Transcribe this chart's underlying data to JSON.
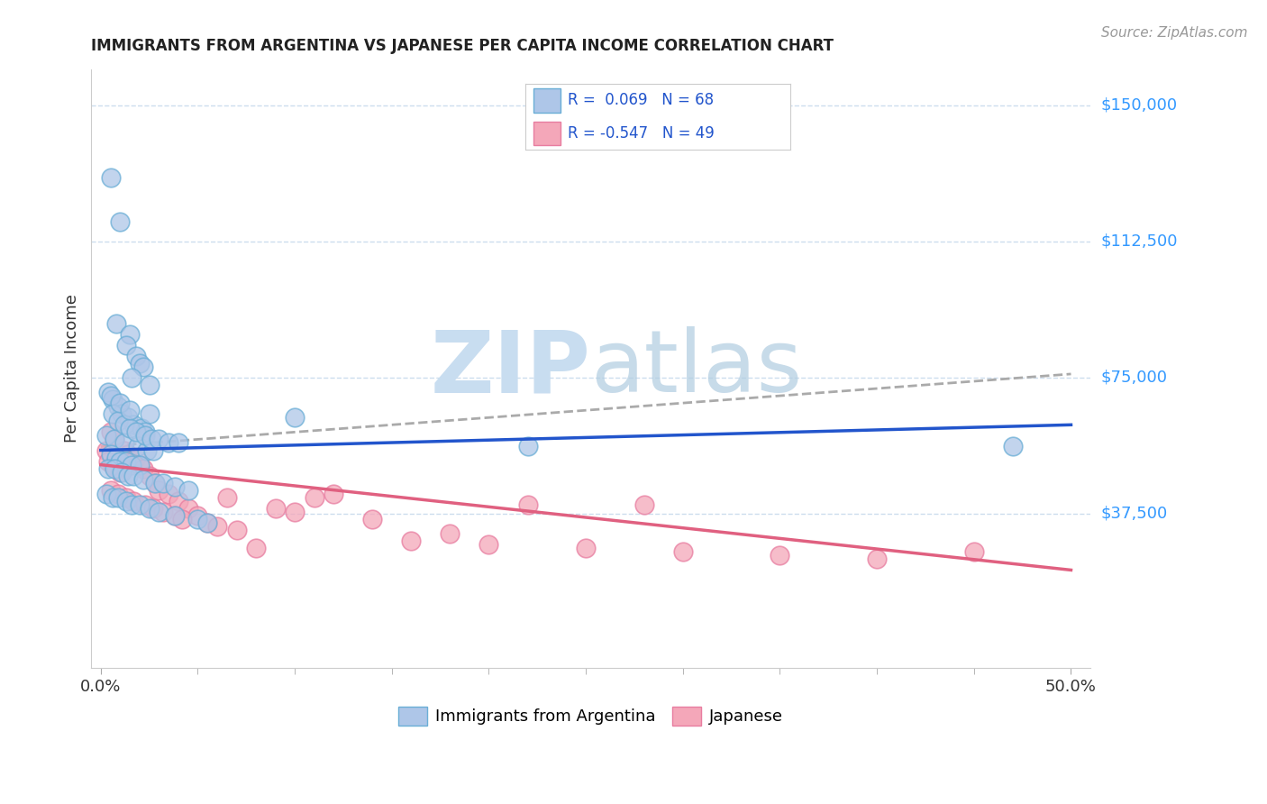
{
  "title": "IMMIGRANTS FROM ARGENTINA VS JAPANESE PER CAPITA INCOME CORRELATION CHART",
  "source": "Source: ZipAtlas.com",
  "ylabel": "Per Capita Income",
  "ytick_labels": [
    "$37,500",
    "$75,000",
    "$112,500",
    "$150,000"
  ],
  "ytick_vals": [
    37500,
    75000,
    112500,
    150000
  ],
  "ylim": [
    -5000,
    160000
  ],
  "xlim": [
    -0.5,
    51
  ],
  "legend_label1": "R =  0.069   N = 68",
  "legend_label2": "R = -0.547   N = 49",
  "legend_color1": "#aec6e8",
  "legend_color2": "#f4a7b9",
  "scatter_edgecolor1": "#6aaed6",
  "scatter_edgecolor2": "#e87da0",
  "line_color1": "#2255cc",
  "line_color2": "#e06080",
  "grid_color": "#ccddee",
  "background_color": "#ffffff",
  "blue_dots_x": [
    0.5,
    1.0,
    0.8,
    1.5,
    1.3,
    1.8,
    2.0,
    2.2,
    1.6,
    2.5,
    0.4,
    0.6,
    0.9,
    1.1,
    1.4,
    1.7,
    2.1,
    2.3,
    0.3,
    0.7,
    1.2,
    1.9,
    2.4,
    2.7,
    0.5,
    0.8,
    1.0,
    1.3,
    1.6,
    2.0,
    0.6,
    0.9,
    1.2,
    1.5,
    1.8,
    2.3,
    2.6,
    3.0,
    3.5,
    4.0,
    0.4,
    0.7,
    1.1,
    1.4,
    1.7,
    2.2,
    2.8,
    3.2,
    3.8,
    4.5,
    0.3,
    0.6,
    0.9,
    1.3,
    1.6,
    2.0,
    2.5,
    3.0,
    3.8,
    5.0,
    0.5,
    1.0,
    1.5,
    2.5,
    10.0,
    22.0,
    47.0,
    5.5
  ],
  "blue_dots_y": [
    130000,
    118000,
    90000,
    87000,
    84000,
    81000,
    79000,
    78000,
    75000,
    73000,
    71000,
    69000,
    67000,
    65000,
    64000,
    62000,
    61000,
    60000,
    59000,
    58000,
    57000,
    56000,
    55000,
    55000,
    54000,
    53000,
    52000,
    52000,
    51000,
    51000,
    65000,
    63000,
    62000,
    61000,
    60000,
    59000,
    58000,
    58000,
    57000,
    57000,
    50000,
    50000,
    49000,
    48000,
    48000,
    47000,
    46000,
    46000,
    45000,
    44000,
    43000,
    42000,
    42000,
    41000,
    40000,
    40000,
    39000,
    38000,
    37000,
    36000,
    70000,
    68000,
    66000,
    65000,
    64000,
    56000,
    56000,
    35000
  ],
  "pink_dots_x": [
    0.3,
    0.5,
    0.7,
    0.4,
    0.6,
    0.8,
    1.0,
    1.2,
    1.4,
    1.6,
    1.8,
    2.0,
    2.2,
    2.5,
    2.8,
    3.0,
    3.5,
    4.0,
    4.5,
    5.0,
    5.5,
    6.0,
    7.0,
    8.0,
    10.0,
    12.0,
    14.0,
    16.0,
    20.0,
    25.0,
    30.0,
    35.0,
    40.0,
    45.0,
    6.5,
    9.0,
    11.0,
    18.0,
    22.0,
    0.5,
    0.9,
    1.3,
    1.7,
    2.3,
    2.7,
    3.2,
    3.8,
    4.2,
    28.0
  ],
  "pink_dots_y": [
    55000,
    60000,
    58000,
    52000,
    51000,
    50000,
    49000,
    55000,
    54000,
    52000,
    53000,
    51000,
    50000,
    48000,
    46000,
    44000,
    43000,
    41000,
    39000,
    37000,
    35000,
    34000,
    33000,
    28000,
    38000,
    43000,
    36000,
    30000,
    29000,
    28000,
    27000,
    26000,
    25000,
    27000,
    42000,
    39000,
    42000,
    32000,
    40000,
    44000,
    43000,
    42000,
    41000,
    40000,
    39000,
    38000,
    37000,
    36000,
    40000
  ],
  "blue_line_x": [
    0,
    50
  ],
  "blue_line_y": [
    55000,
    62000
  ],
  "pink_line_x": [
    0,
    50
  ],
  "pink_line_y": [
    51000,
    22000
  ],
  "dash_line_x": [
    0,
    50
  ],
  "dash_line_y": [
    56000,
    76000
  ],
  "xtick_positions": [
    0,
    50
  ],
  "xtick_labels": [
    "0.0%",
    "50.0%"
  ],
  "xtick_minor_positions": [
    5,
    10,
    15,
    20,
    25,
    30,
    35,
    40,
    45
  ]
}
